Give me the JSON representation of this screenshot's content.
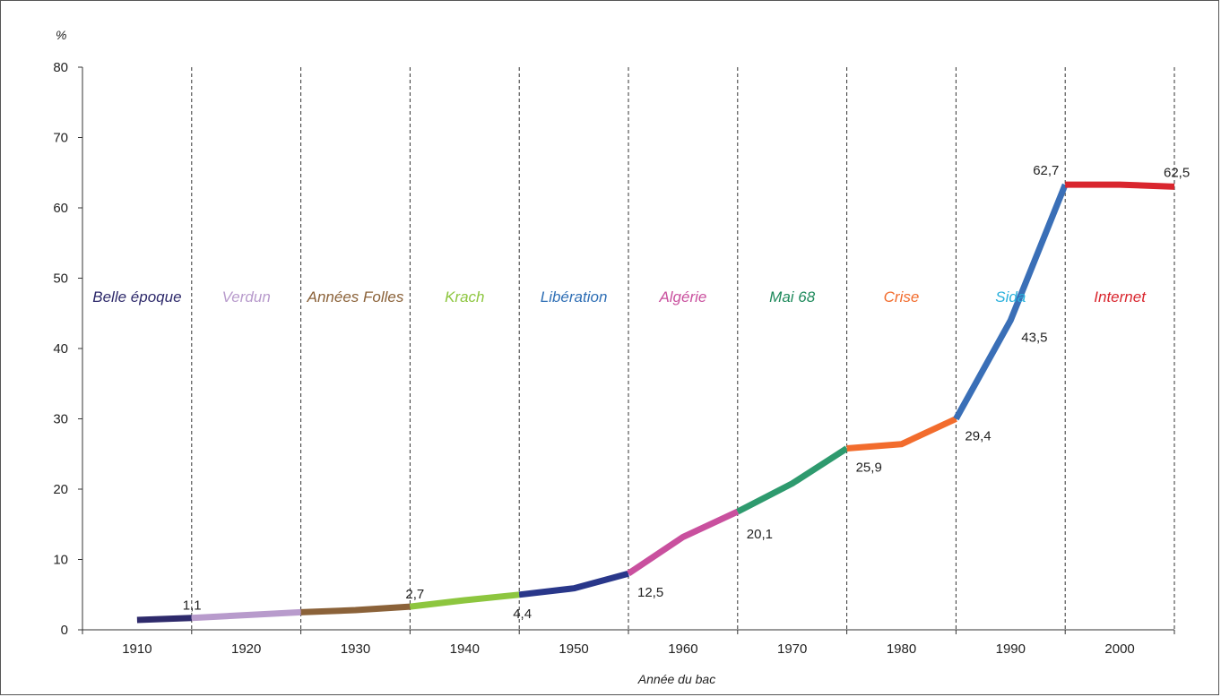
{
  "chart_data": {
    "type": "line",
    "title": "",
    "xlabel": "Année du bac",
    "ylabel": "%",
    "ylim": [
      0,
      80
    ],
    "y_ticks": [
      0,
      10,
      20,
      30,
      40,
      50,
      60,
      70,
      80
    ],
    "x_categories": [
      "1910",
      "1920",
      "1930",
      "1940",
      "1950",
      "1960",
      "1970",
      "1980",
      "1990",
      "2000"
    ],
    "grid": "vertical dashed separators between decades",
    "periods": [
      {
        "label": "Belle époque",
        "color": "#2e2a6b",
        "points": [
          [
            1910,
            1.4
          ],
          [
            1915,
            1.7
          ]
        ]
      },
      {
        "label": "Verdun",
        "color": "#b89bcc",
        "points": [
          [
            1915,
            1.7
          ],
          [
            1925,
            2.5
          ]
        ]
      },
      {
        "label": "Années Folles",
        "color": "#8b6239",
        "points": [
          [
            1925,
            2.5
          ],
          [
            1930,
            2.8
          ],
          [
            1935,
            3.3
          ]
        ]
      },
      {
        "label": "Krach",
        "color": "#8dc63f",
        "points": [
          [
            1935,
            3.3
          ],
          [
            1940,
            4.2
          ],
          [
            1945,
            5.0
          ]
        ]
      },
      {
        "label": "Libération",
        "color": "#29378a",
        "points": [
          [
            1945,
            5.0
          ],
          [
            1950,
            5.9
          ],
          [
            1955,
            8.0
          ]
        ]
      },
      {
        "label": "Algérie",
        "color": "#c9509e",
        "points": [
          [
            1955,
            8.0
          ],
          [
            1960,
            13.2
          ],
          [
            1965,
            16.8
          ]
        ]
      },
      {
        "label": "Mai 68",
        "color": "#2e9a6e",
        "points": [
          [
            1965,
            16.8
          ],
          [
            1970,
            20.8
          ],
          [
            1975,
            25.8
          ]
        ]
      },
      {
        "label": "Crise",
        "color": "#f26c2d",
        "points": [
          [
            1975,
            25.8
          ],
          [
            1980,
            26.4
          ],
          [
            1985,
            30.0
          ]
        ]
      },
      {
        "label": "Sida",
        "color": "#3a6fb7",
        "points": [
          [
            1985,
            30.0
          ],
          [
            1990,
            44.0
          ],
          [
            1995,
            63.3
          ]
        ]
      },
      {
        "label": "Internet",
        "color": "#d9262e",
        "points": [
          [
            1995,
            63.3
          ],
          [
            2000,
            63.3
          ],
          [
            2005,
            63.0
          ]
        ]
      }
    ],
    "period_label_colors": [
      "#2e2a6b",
      "#b89bcc",
      "#8b6239",
      "#8dc63f",
      "#2f6fb5",
      "#c9509e",
      "#1f8a5c",
      "#f26c2d",
      "#29b0dc",
      "#d9262e"
    ],
    "annotations": [
      {
        "text": "1,1",
        "x": 1915,
        "y": 1.7
      },
      {
        "text": "2,7",
        "x": 1935,
        "y": 3.3
      },
      {
        "text": "4,4",
        "x": 1945,
        "y": 5.0
      },
      {
        "text": "12,5",
        "x": 1955,
        "y": 8.0
      },
      {
        "text": "20,1",
        "x": 1965,
        "y": 16.8
      },
      {
        "text": "25,9",
        "x": 1975,
        "y": 25.8
      },
      {
        "text": "29,4",
        "x": 1985,
        "y": 30.0
      },
      {
        "text": "43,5",
        "x": 1990,
        "y": 44.0
      },
      {
        "text": "62,7",
        "x": 1995,
        "y": 63.3
      },
      {
        "text": "62,5",
        "x": 2005,
        "y": 63.0
      }
    ]
  }
}
